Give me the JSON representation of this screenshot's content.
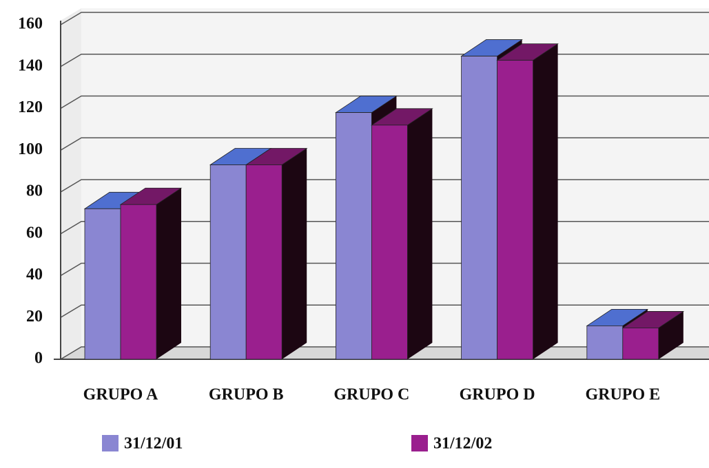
{
  "chart_data": {
    "type": "bar",
    "categories": [
      "GRUPO A",
      "GRUPO B",
      "GRUPO C",
      "GRUPO D",
      "GRUPO E"
    ],
    "series": [
      {
        "name": "31/12/01",
        "color": "#8a86d2",
        "values": [
          72,
          93,
          118,
          145,
          16
        ]
      },
      {
        "name": "31/12/02",
        "color": "#9a1f8e",
        "values": [
          74,
          93,
          112,
          143,
          15
        ]
      }
    ],
    "ylim": [
      0,
      160
    ],
    "yticks": [
      0,
      20,
      40,
      60,
      80,
      100,
      120,
      140,
      160
    ],
    "grid": true
  }
}
